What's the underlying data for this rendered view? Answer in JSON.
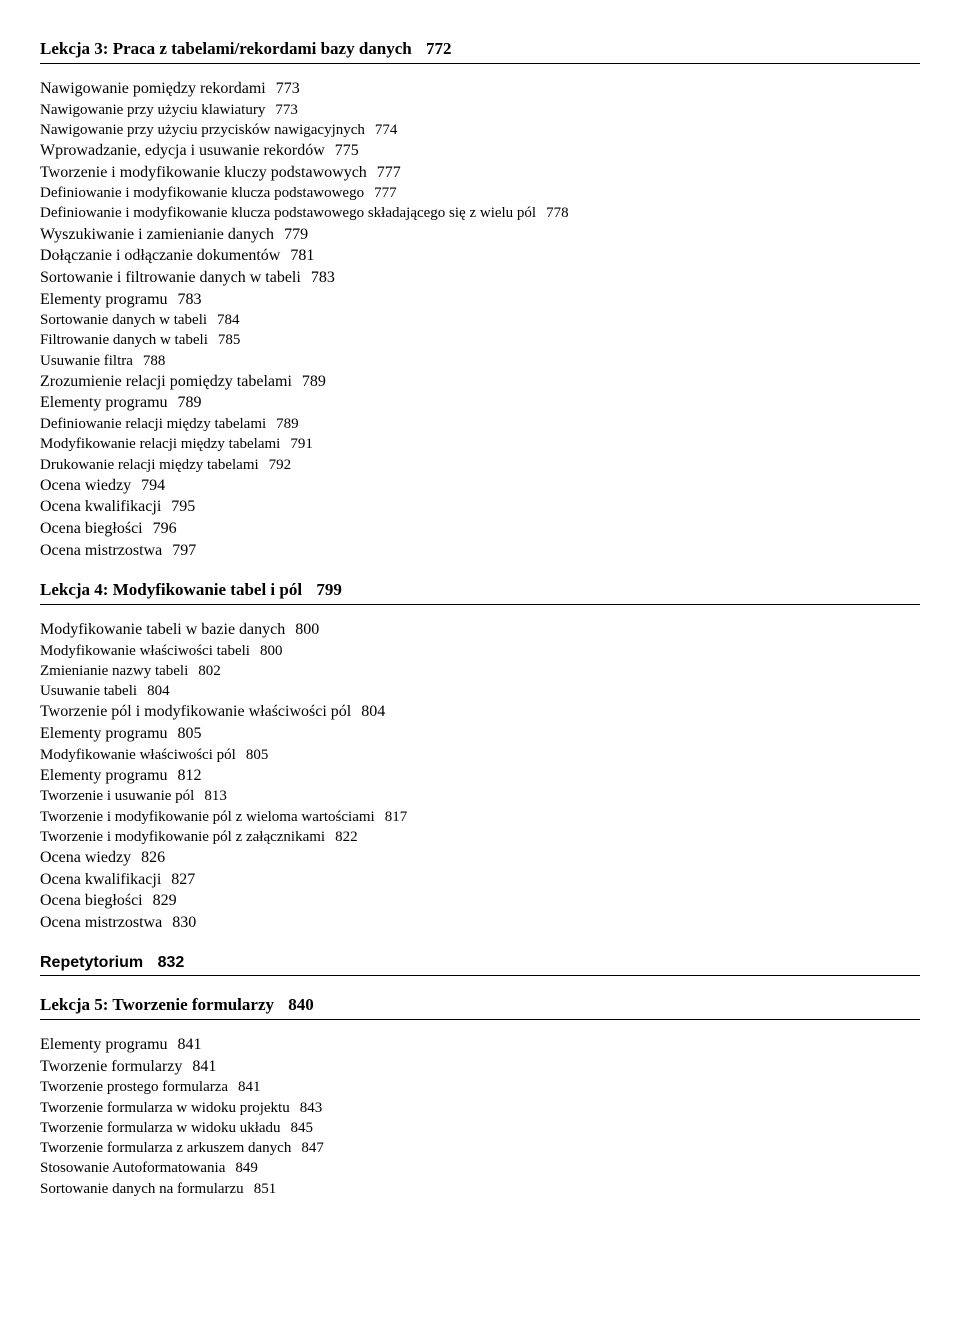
{
  "lekcja3": {
    "heading": "Lekcja 3:  Praca z tabelami/rekordami bazy danych",
    "heading_page": "772",
    "items": [
      {
        "lvl": 1,
        "t": "Nawigowanie pomiędzy rekordami",
        "p": "773"
      },
      {
        "lvl": 2,
        "t": "Nawigowanie przy użyciu klawiatury",
        "p": "773"
      },
      {
        "lvl": 2,
        "t": "Nawigowanie przy użyciu przycisków nawigacyjnych",
        "p": "774"
      },
      {
        "lvl": 1,
        "t": "Wprowadzanie, edycja i usuwanie rekordów",
        "p": "775"
      },
      {
        "lvl": 1,
        "t": "Tworzenie i modyfikowanie kluczy podstawowych",
        "p": "777"
      },
      {
        "lvl": 2,
        "t": "Definiowanie i modyfikowanie klucza podstawowego",
        "p": "777"
      },
      {
        "lvl": 2,
        "t": "Definiowanie i modyfikowanie klucza podstawowego składającego się z wielu pól",
        "p": "778"
      },
      {
        "lvl": 1,
        "t": "Wyszukiwanie i zamienianie danych",
        "p": "779"
      },
      {
        "lvl": 1,
        "t": "Dołączanie i odłączanie dokumentów",
        "p": "781"
      },
      {
        "lvl": 1,
        "t": "Sortowanie i filtrowanie danych w tabeli",
        "p": "783"
      },
      {
        "lvl": 1,
        "t": "Elementy programu",
        "p": "783"
      },
      {
        "lvl": 2,
        "t": "Sortowanie danych w tabeli",
        "p": "784"
      },
      {
        "lvl": 2,
        "t": "Filtrowanie danych w tabeli",
        "p": "785"
      },
      {
        "lvl": 2,
        "t": "Usuwanie filtra",
        "p": "788"
      },
      {
        "lvl": 1,
        "t": "Zrozumienie relacji pomiędzy tabelami",
        "p": "789"
      },
      {
        "lvl": 1,
        "t": "Elementy programu",
        "p": "789"
      },
      {
        "lvl": 2,
        "t": "Definiowanie relacji między tabelami",
        "p": "789"
      },
      {
        "lvl": 2,
        "t": "Modyfikowanie relacji między tabelami",
        "p": "791"
      },
      {
        "lvl": 2,
        "t": "Drukowanie relacji między tabelami",
        "p": "792"
      },
      {
        "lvl": 1,
        "t": "Ocena wiedzy",
        "p": "794"
      },
      {
        "lvl": 1,
        "t": "Ocena kwalifikacji",
        "p": "795"
      },
      {
        "lvl": 1,
        "t": "Ocena biegłości",
        "p": "796"
      },
      {
        "lvl": 1,
        "t": "Ocena mistrzostwa",
        "p": "797"
      }
    ]
  },
  "lekcja4": {
    "heading": "Lekcja 4:  Modyfikowanie tabel i pól",
    "heading_page": "799",
    "items": [
      {
        "lvl": 1,
        "t": "Modyfikowanie tabeli w bazie danych",
        "p": "800"
      },
      {
        "lvl": 2,
        "t": "Modyfikowanie właściwości tabeli",
        "p": "800"
      },
      {
        "lvl": 2,
        "t": "Zmienianie nazwy tabeli",
        "p": "802"
      },
      {
        "lvl": 2,
        "t": "Usuwanie tabeli",
        "p": "804"
      },
      {
        "lvl": 1,
        "t": "Tworzenie pól i modyfikowanie właściwości pól",
        "p": "804"
      },
      {
        "lvl": 1,
        "t": "Elementy programu",
        "p": "805"
      },
      {
        "lvl": 2,
        "t": "Modyfikowanie właściwości pól",
        "p": "805"
      },
      {
        "lvl": 1,
        "t": "Elementy programu",
        "p": "812"
      },
      {
        "lvl": 2,
        "t": "Tworzenie i usuwanie pól",
        "p": "813"
      },
      {
        "lvl": 2,
        "t": "Tworzenie i modyfikowanie pól z wieloma wartościami",
        "p": "817"
      },
      {
        "lvl": 2,
        "t": "Tworzenie i modyfikowanie pól z załącznikami",
        "p": "822"
      },
      {
        "lvl": 1,
        "t": "Ocena wiedzy",
        "p": "826"
      },
      {
        "lvl": 1,
        "t": "Ocena kwalifikacji",
        "p": "827"
      },
      {
        "lvl": 1,
        "t": "Ocena biegłości",
        "p": "829"
      },
      {
        "lvl": 1,
        "t": "Ocena mistrzostwa",
        "p": "830"
      }
    ]
  },
  "repet": {
    "heading": "Repetytorium",
    "heading_page": "832"
  },
  "lekcja5": {
    "heading": "Lekcja 5:  Tworzenie formularzy",
    "heading_page": "840",
    "items": [
      {
        "lvl": 1,
        "t": "Elementy programu",
        "p": "841"
      },
      {
        "lvl": 1,
        "t": "Tworzenie formularzy",
        "p": "841"
      },
      {
        "lvl": 2,
        "t": "Tworzenie prostego formularza",
        "p": "841"
      },
      {
        "lvl": 2,
        "t": "Tworzenie formularza w widoku projektu",
        "p": "843"
      },
      {
        "lvl": 2,
        "t": "Tworzenie formularza w widoku układu",
        "p": "845"
      },
      {
        "lvl": 2,
        "t": "Tworzenie formularza z arkuszem danych",
        "p": "847"
      },
      {
        "lvl": 2,
        "t": "Stosowanie Autoformatowania",
        "p": "849"
      },
      {
        "lvl": 2,
        "t": "Sortowanie danych na formularzu",
        "p": "851"
      }
    ]
  }
}
